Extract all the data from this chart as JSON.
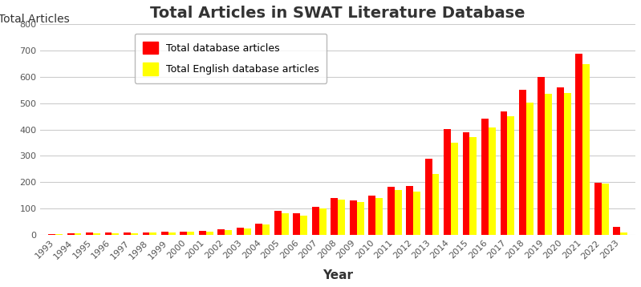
{
  "title": "Total Articles in SWAT Literature Database",
  "ylabel": "Total Articles",
  "xlabel": "Year",
  "years": [
    1993,
    1994,
    1995,
    1996,
    1997,
    1998,
    1999,
    2000,
    2001,
    2002,
    2003,
    2004,
    2005,
    2006,
    2007,
    2008,
    2009,
    2010,
    2011,
    2012,
    2013,
    2014,
    2015,
    2016,
    2017,
    2018,
    2019,
    2020,
    2021,
    2022,
    2023
  ],
  "total_db": [
    3,
    5,
    8,
    8,
    8,
    10,
    12,
    13,
    15,
    20,
    28,
    42,
    90,
    82,
    105,
    140,
    130,
    148,
    183,
    185,
    288,
    402,
    390,
    442,
    468,
    550,
    600,
    560,
    688,
    197,
    30
  ],
  "english_db": [
    3,
    5,
    7,
    7,
    7,
    9,
    10,
    11,
    13,
    17,
    23,
    38,
    82,
    72,
    100,
    135,
    125,
    140,
    170,
    165,
    230,
    350,
    370,
    408,
    450,
    502,
    535,
    540,
    648,
    195,
    10
  ],
  "bar_color_total": "#FF0000",
  "bar_color_english": "#FFFF00",
  "legend_label_total": "Total database articles",
  "legend_label_english": "Total English database articles",
  "ylim": [
    0,
    800
  ],
  "yticks": [
    0,
    100,
    200,
    300,
    400,
    500,
    600,
    700,
    800
  ],
  "background_color": "#FFFFFF",
  "grid_color": "#CCCCCC",
  "title_fontsize": 14,
  "axis_label_fontsize": 11,
  "tick_fontsize": 8,
  "bar_width": 0.38
}
